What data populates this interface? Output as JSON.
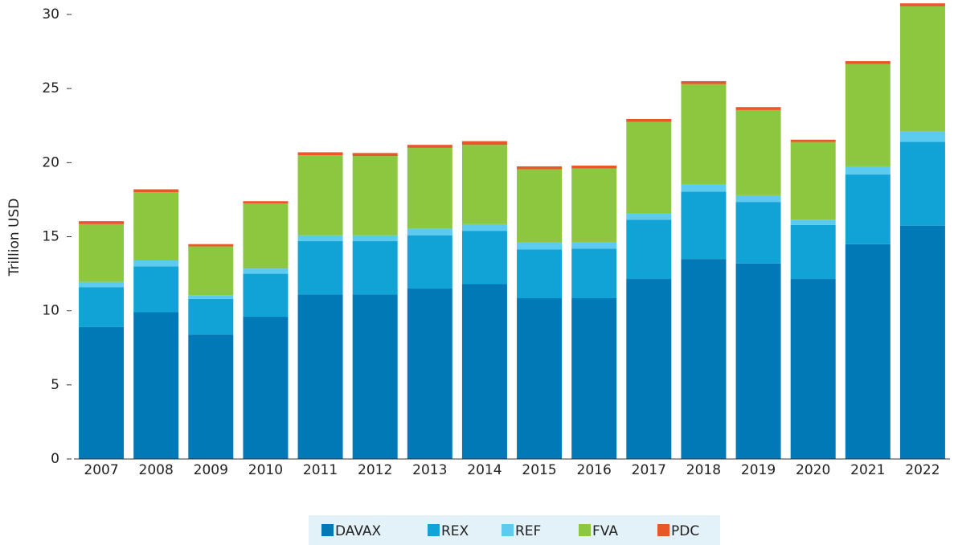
{
  "chart_data": {
    "type": "stacked_bar",
    "y_label": "Trillion USD",
    "categories": [
      "2007",
      "2008",
      "2009",
      "2010",
      "2011",
      "2012",
      "2013",
      "2014",
      "2015",
      "2016",
      "2017",
      "2018",
      "2019",
      "2020",
      "2021",
      "2022"
    ],
    "series": [
      {
        "name": "DAVAX",
        "color": "#0079b6",
        "values": [
          8.9,
          9.9,
          8.4,
          9.6,
          11.1,
          11.1,
          11.5,
          11.8,
          10.85,
          10.85,
          12.15,
          13.5,
          13.2,
          12.15,
          14.5,
          15.75
        ]
      },
      {
        "name": "REX",
        "color": "#12a3d6",
        "values": [
          2.7,
          3.1,
          2.4,
          2.9,
          3.6,
          3.6,
          3.6,
          3.6,
          3.3,
          3.35,
          4.0,
          4.55,
          4.15,
          3.65,
          4.7,
          5.65
        ]
      },
      {
        "name": "REF",
        "color": "#5ccbef",
        "values": [
          0.35,
          0.4,
          0.25,
          0.35,
          0.4,
          0.4,
          0.45,
          0.45,
          0.45,
          0.45,
          0.45,
          0.5,
          0.45,
          0.35,
          0.55,
          0.7
        ]
      },
      {
        "name": "FVA",
        "color": "#8dc63f",
        "values": [
          3.9,
          4.6,
          3.3,
          4.4,
          5.4,
          5.35,
          5.45,
          5.35,
          4.95,
          4.95,
          6.15,
          6.75,
          5.75,
          5.25,
          6.9,
          8.45
        ]
      },
      {
        "name": "PDC",
        "color": "#e8572a",
        "values": [
          0.2,
          0.2,
          0.15,
          0.15,
          0.2,
          0.2,
          0.2,
          0.25,
          0.2,
          0.2,
          0.2,
          0.2,
          0.2,
          0.15,
          0.2,
          0.2
        ]
      }
    ],
    "ylim": [
      0,
      30
    ],
    "yticks": [
      0,
      5,
      10,
      15,
      20,
      25,
      30
    ],
    "legend": "bottom"
  }
}
